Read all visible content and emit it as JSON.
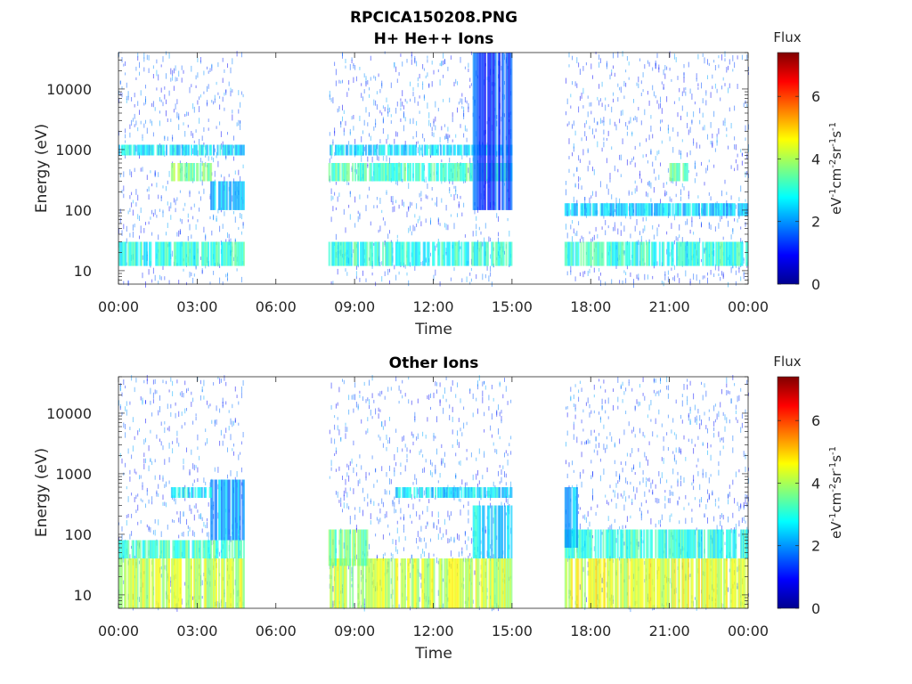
{
  "figure": {
    "title": "RPCICA150208.PNG"
  },
  "chart_data": [
    {
      "type": "heatmap",
      "title": "H+ He++ Ions",
      "xlabel": "Time",
      "ylabel": "Energy (eV)",
      "x_ticks": [
        "00:00",
        "03:00",
        "06:00",
        "09:00",
        "12:00",
        "15:00",
        "18:00",
        "21:00",
        "00:00"
      ],
      "xlim_hours": [
        0,
        24
      ],
      "y_scale": "log",
      "y_ticks": [
        "10",
        "100",
        "1000",
        "10000"
      ],
      "ylim": [
        6,
        40000
      ],
      "colorbar": {
        "label": "Flux",
        "unit_label": "eV-1cm-2sr-1s-1",
        "ticks": [
          "0",
          "2",
          "4",
          "6"
        ],
        "range": [
          0,
          7.4
        ],
        "colormap": "jet"
      },
      "data_gaps_hours": [
        [
          4.75,
          8.0
        ],
        [
          15.0,
          17.0
        ]
      ],
      "bands": [
        {
          "hours": [
            0.0,
            4.75
          ],
          "energy_eV": [
            12,
            30
          ],
          "flux": 3.0
        },
        {
          "hours": [
            0.0,
            4.75
          ],
          "energy_eV": [
            800,
            1200
          ],
          "flux": 2.6
        },
        {
          "hours": [
            2.0,
            3.5
          ],
          "energy_eV": [
            300,
            600
          ],
          "flux": 3.6
        },
        {
          "hours": [
            3.5,
            4.75
          ],
          "energy_eV": [
            100,
            300
          ],
          "flux": 2.4
        },
        {
          "hours": [
            8.0,
            15.0
          ],
          "energy_eV": [
            300,
            600
          ],
          "flux": 3.2
        },
        {
          "hours": [
            8.0,
            15.0
          ],
          "energy_eV": [
            12,
            30
          ],
          "flux": 3.0
        },
        {
          "hours": [
            8.0,
            15.0
          ],
          "energy_eV": [
            800,
            1200
          ],
          "flux": 2.6
        },
        {
          "hours": [
            13.5,
            15.0
          ],
          "energy_eV": [
            100,
            40000
          ],
          "flux": 1.4
        },
        {
          "hours": [
            17.0,
            24.0
          ],
          "energy_eV": [
            12,
            30
          ],
          "flux": 3.0
        },
        {
          "hours": [
            17.0,
            24.0
          ],
          "energy_eV": [
            80,
            130
          ],
          "flux": 2.4
        },
        {
          "hours": [
            21.0,
            21.7
          ],
          "energy_eV": [
            300,
            600
          ],
          "flux": 3.4
        }
      ]
    },
    {
      "type": "heatmap",
      "title": "Other Ions",
      "xlabel": "Time",
      "ylabel": "Energy (eV)",
      "x_ticks": [
        "00:00",
        "03:00",
        "06:00",
        "09:00",
        "12:00",
        "15:00",
        "18:00",
        "21:00",
        "00:00"
      ],
      "xlim_hours": [
        0,
        24
      ],
      "y_scale": "log",
      "y_ticks": [
        "10",
        "100",
        "1000",
        "10000"
      ],
      "ylim": [
        6,
        40000
      ],
      "colorbar": {
        "label": "Flux",
        "unit_label": "eV-1cm-2sr-1s-1",
        "ticks": [
          "0",
          "2",
          "4",
          "6"
        ],
        "range": [
          0,
          7.4
        ],
        "colormap": "jet"
      },
      "data_gaps_hours": [
        [
          4.75,
          8.0
        ],
        [
          15.0,
          17.0
        ]
      ],
      "bands": [
        {
          "hours": [
            0.0,
            4.75
          ],
          "energy_eV": [
            6,
            40
          ],
          "flux": 4.2
        },
        {
          "hours": [
            0.0,
            4.75
          ],
          "energy_eV": [
            40,
            80
          ],
          "flux": 3.2
        },
        {
          "hours": [
            3.5,
            4.75
          ],
          "energy_eV": [
            80,
            800
          ],
          "flux": 2.2
        },
        {
          "hours": [
            2.0,
            3.5
          ],
          "energy_eV": [
            400,
            600
          ],
          "flux": 2.6
        },
        {
          "hours": [
            8.0,
            15.0
          ],
          "energy_eV": [
            6,
            40
          ],
          "flux": 4.2
        },
        {
          "hours": [
            8.0,
            9.5
          ],
          "energy_eV": [
            30,
            120
          ],
          "flux": 3.6
        },
        {
          "hours": [
            10.5,
            15.0
          ],
          "energy_eV": [
            400,
            600
          ],
          "flux": 2.6
        },
        {
          "hours": [
            13.5,
            15.0
          ],
          "energy_eV": [
            40,
            300
          ],
          "flux": 2.6
        },
        {
          "hours": [
            17.0,
            24.0
          ],
          "energy_eV": [
            6,
            40
          ],
          "flux": 4.4
        },
        {
          "hours": [
            17.0,
            24.0
          ],
          "energy_eV": [
            40,
            120
          ],
          "flux": 3.0
        },
        {
          "hours": [
            17.0,
            17.5
          ],
          "energy_eV": [
            60,
            600
          ],
          "flux": 2.2
        }
      ]
    }
  ]
}
